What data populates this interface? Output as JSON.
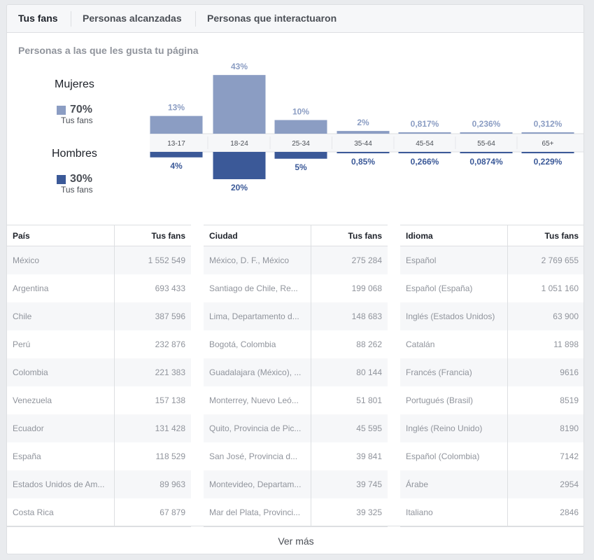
{
  "tabs": [
    {
      "label": "Tus fans",
      "active": true
    },
    {
      "label": "Personas alcanzadas",
      "active": false
    },
    {
      "label": "Personas que interactuaron",
      "active": false
    }
  ],
  "section_title": "Personas a las que les gusta tu página",
  "women": {
    "label": "Mujeres",
    "percent": "70%",
    "sub": "Tus fans",
    "color": "#8b9dc3"
  },
  "men": {
    "label": "Hombres",
    "percent": "30%",
    "sub": "Tus fans",
    "color": "#3b5998"
  },
  "chart_data": {
    "type": "bar",
    "categories": [
      "13-17",
      "18-24",
      "25-34",
      "35-44",
      "45-54",
      "55-64",
      "65+"
    ],
    "series": [
      {
        "name": "Mujeres",
        "values": [
          13,
          43,
          10,
          2,
          0.817,
          0.236,
          0.312
        ],
        "labels": [
          "13%",
          "43%",
          "10%",
          "2%",
          "0,817%",
          "0,236%",
          "0,312%"
        ],
        "color": "#8b9dc3"
      },
      {
        "name": "Hombres",
        "values": [
          4,
          20,
          5,
          0.85,
          0.266,
          0.0874,
          0.229
        ],
        "labels": [
          "4%",
          "20%",
          "5%",
          "0,85%",
          "0,266%",
          "0,0874%",
          "0,229%"
        ],
        "color": "#3b5998"
      }
    ]
  },
  "tables": [
    {
      "headers": [
        "País",
        "Tus fans"
      ],
      "rows": [
        [
          "México",
          "1 552 549"
        ],
        [
          "Argentina",
          "693 433"
        ],
        [
          "Chile",
          "387 596"
        ],
        [
          "Perú",
          "232 876"
        ],
        [
          "Colombia",
          "221 383"
        ],
        [
          "Venezuela",
          "157 138"
        ],
        [
          "Ecuador",
          "131 428"
        ],
        [
          "España",
          "118 529"
        ],
        [
          "Estados Unidos de Am...",
          "89 963"
        ],
        [
          "Costa Rica",
          "67 879"
        ]
      ]
    },
    {
      "headers": [
        "Ciudad",
        "Tus fans"
      ],
      "rows": [
        [
          "México, D. F., México",
          "275 284"
        ],
        [
          "Santiago de Chile, Re...",
          "199 068"
        ],
        [
          "Lima, Departamento d...",
          "148 683"
        ],
        [
          "Bogotá, Colombia",
          "88 262"
        ],
        [
          "Guadalajara (México), ...",
          "80 144"
        ],
        [
          "Monterrey, Nuevo Leó...",
          "51 801"
        ],
        [
          "Quito, Provincia de Pic...",
          "45 595"
        ],
        [
          "San José, Provincia d...",
          "39 841"
        ],
        [
          "Montevideo, Departam...",
          "39 745"
        ],
        [
          "Mar del Plata, Provinci...",
          "39 325"
        ]
      ]
    },
    {
      "headers": [
        "Idioma",
        "Tus fans"
      ],
      "rows": [
        [
          "Español",
          "2 769 655"
        ],
        [
          "Español (España)",
          "1 051 160"
        ],
        [
          "Inglés (Estados Unidos)",
          "63 900"
        ],
        [
          "Catalán",
          "11 898"
        ],
        [
          "Francés (Francia)",
          "9616"
        ],
        [
          "Portugués (Brasil)",
          "8519"
        ],
        [
          "Inglés (Reino Unido)",
          "8190"
        ],
        [
          "Español (Colombia)",
          "7142"
        ],
        [
          "Árabe",
          "2954"
        ],
        [
          "Italiano",
          "2846"
        ]
      ]
    }
  ],
  "more_label": "Ver más"
}
